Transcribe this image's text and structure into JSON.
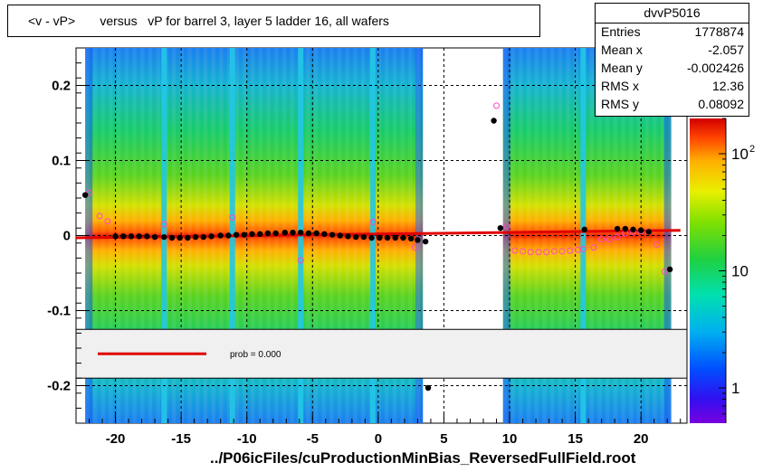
{
  "title": "<v - vP>       versus   vP for barrel 3, layer 5 ladder 16, all wafers",
  "stats": {
    "name": "dvvP5016",
    "rows": [
      {
        "key": "Entries",
        "value": "1778874"
      },
      {
        "key": "Mean x",
        "value": "-2.057"
      },
      {
        "key": "Mean y",
        "value": "-0.002426"
      },
      {
        "key": "RMS x",
        "value": "12.36"
      },
      {
        "key": "RMS y",
        "value": "0.08092"
      }
    ]
  },
  "fit_legend": {
    "text": "prob = 0.000",
    "color": "#e00000"
  },
  "footer": "../P06icFiles/cuProductionMinBias_ReversedFullField.root",
  "colors": {
    "fit_line": "#e00000",
    "profile_marker": "#000000",
    "alt_marker": "#ff44cc",
    "grid": "#000000"
  },
  "chart_data": {
    "type": "heatmap",
    "xlim": [
      -23,
      23.5
    ],
    "ylim": [
      -0.25,
      0.25
    ],
    "x_ticks": [
      -20,
      -15,
      -10,
      -5,
      0,
      5,
      10,
      15,
      20
    ],
    "y_ticks": [
      -0.2,
      -0.1,
      0,
      0.1,
      0.2
    ],
    "y_tick_labels": [
      "-0.2",
      "-0.1",
      "0",
      "0.1",
      "0.2"
    ],
    "gaps": [
      [
        3.4,
        9.5
      ]
    ],
    "thin_bands": [
      -16.3,
      -11.1,
      -5.9,
      -0.4,
      15.6
    ],
    "colorbar": {
      "scale": "log",
      "labels": [
        "1",
        "10",
        "10^2"
      ],
      "values": [
        1,
        10,
        100
      ],
      "range": [
        0.5,
        200
      ]
    },
    "fit_line": {
      "x": [
        -23,
        23
      ],
      "y": [
        -0.003,
        0.007
      ]
    },
    "fit_legend_y_range": [
      -0.19,
      -0.125
    ],
    "profile": {
      "x": [
        -22.3,
        -20,
        -19.4,
        -18.8,
        -18.2,
        -17.6,
        -17.0,
        -16.3,
        -15.7,
        -15.1,
        -14.5,
        -13.9,
        -13.3,
        -12.7,
        -12.0,
        -11.4,
        -10.8,
        -10.2,
        -9.6,
        -9.0,
        -8.4,
        -7.8,
        -7.1,
        -6.5,
        -5.9,
        -5.3,
        -4.7,
        -4.1,
        -3.5,
        -2.9,
        -2.3,
        -1.7,
        -1.1,
        -0.5,
        0.1,
        0.7,
        1.3,
        1.9,
        2.5,
        3.0,
        3.6,
        3.8,
        8.8,
        9.3,
        15.7,
        18.2,
        18.8,
        19.4,
        20.0,
        20.6,
        22.2
      ],
      "y": [
        0.054,
        -0.001,
        -0.001,
        -0.001,
        -0.001,
        -0.001,
        -0.002,
        -0.002,
        -0.003,
        -0.003,
        -0.003,
        -0.002,
        -0.002,
        -0.001,
        0.0,
        0.0,
        0.001,
        0.001,
        0.002,
        0.002,
        0.003,
        0.003,
        0.004,
        0.004,
        0.004,
        0.003,
        0.003,
        0.002,
        0.001,
        0.0,
        -0.001,
        -0.002,
        -0.002,
        -0.003,
        -0.003,
        -0.003,
        -0.003,
        -0.003,
        -0.004,
        -0.006,
        -0.008,
        -0.203,
        0.153,
        0.01,
        0.008,
        0.009,
        0.009,
        0.008,
        0.007,
        0.005,
        -0.045
      ]
    },
    "alt_profile": {
      "x": [
        -22.0,
        -21.2,
        -20.6,
        -16.3,
        -11.1,
        -5.9,
        -0.4,
        2.8,
        9.0,
        9.8,
        10.4,
        11.0,
        11.6,
        12.2,
        12.8,
        13.4,
        14.0,
        14.6,
        15.2,
        15.6,
        16.4,
        17.0,
        17.6,
        18.2,
        18.8,
        19.4,
        20.0,
        20.6,
        21.2,
        21.8
      ],
      "y": [
        0.057,
        0.026,
        0.019,
        0.015,
        0.024,
        -0.033,
        0.018,
        -0.016,
        0.173,
        0.012,
        -0.02,
        -0.021,
        -0.022,
        -0.022,
        -0.022,
        -0.021,
        -0.021,
        -0.02,
        -0.019,
        -0.018,
        -0.016,
        -0.005,
        -0.005,
        -0.002,
        0.003,
        0.005,
        0.006,
        0.005,
        -0.012,
        -0.048
      ]
    }
  }
}
